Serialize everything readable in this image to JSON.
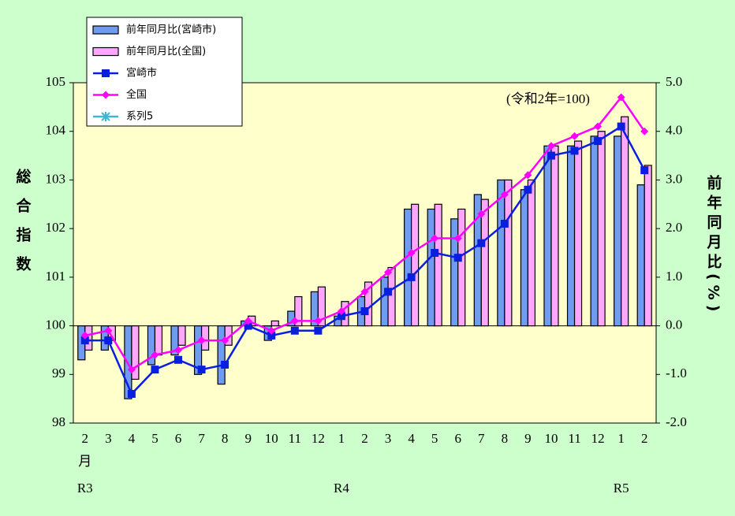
{
  "chart_data": {
    "type": "bar_line",
    "annotation": "(令和2年=100)",
    "y_axis_label": "総合指数",
    "y2_axis_label": "前年同月比(%)",
    "categories": [
      "2",
      "3",
      "4",
      "5",
      "6",
      "7",
      "8",
      "9",
      "10",
      "11",
      "12",
      "1",
      "2",
      "3",
      "4",
      "5",
      "6",
      "7",
      "8",
      "9",
      "10",
      "11",
      "12",
      "1",
      "2"
    ],
    "month_label": "月",
    "era_labels": [
      "R3",
      "R4",
      "R5"
    ],
    "ylim": [
      98,
      105
    ],
    "yticks": [
      98,
      99,
      100,
      101,
      102,
      103,
      104,
      105
    ],
    "y2lim": [
      -2,
      5
    ],
    "y2ticks": [
      {
        "value": -2,
        "label": "-2.0"
      },
      {
        "value": -1,
        "label": "-1.0"
      },
      {
        "value": 0,
        "label": "0.0"
      },
      {
        "value": 1,
        "label": "1.0"
      },
      {
        "value": 2,
        "label": "2.0"
      },
      {
        "value": 3,
        "label": "3.0"
      },
      {
        "value": 4,
        "label": "4.0"
      },
      {
        "value": 5,
        "label": "5.0"
      }
    ],
    "grid": false,
    "series": [
      {
        "name": "前年同月比(宮崎市)",
        "kind": "bar",
        "axis": "y2",
        "color": "#6f9cf0",
        "values": [
          -0.7,
          -0.5,
          -1.5,
          -0.8,
          -0.6,
          -1.0,
          -1.2,
          0.1,
          -0.3,
          0.3,
          0.7,
          0.2,
          0.6,
          1.0,
          2.4,
          2.4,
          2.2,
          2.7,
          3.0,
          2.8,
          3.7,
          3.7,
          3.9,
          3.9,
          2.9
        ]
      },
      {
        "name": "前年同月比(全国)",
        "kind": "bar",
        "axis": "y2",
        "color": "#ffa6ff",
        "values": [
          -0.5,
          -0.3,
          -1.1,
          -0.6,
          -0.4,
          -0.5,
          -0.4,
          0.2,
          0.1,
          0.6,
          0.8,
          0.5,
          0.9,
          1.2,
          2.5,
          2.5,
          2.4,
          2.6,
          3.0,
          3.0,
          3.7,
          3.8,
          4.0,
          4.3,
          3.3
        ]
      },
      {
        "name": "宮崎市",
        "kind": "line",
        "marker": "square",
        "color": "#0a1ee0",
        "values": [
          99.7,
          99.7,
          98.6,
          99.1,
          99.3,
          99.1,
          99.2,
          100.0,
          99.8,
          99.9,
          99.9,
          100.2,
          100.3,
          100.7,
          101.0,
          101.5,
          101.4,
          101.7,
          102.1,
          102.8,
          103.5,
          103.6,
          103.8,
          104.1,
          103.2
        ]
      },
      {
        "name": "全国",
        "kind": "line",
        "marker": "diamond",
        "color": "#ff00ff",
        "values": [
          99.8,
          99.9,
          99.1,
          99.4,
          99.5,
          99.7,
          99.7,
          100.1,
          99.9,
          100.1,
          100.1,
          100.3,
          100.7,
          101.1,
          101.5,
          101.8,
          101.8,
          102.3,
          102.7,
          103.1,
          103.7,
          103.9,
          104.1,
          104.7,
          104.0
        ]
      },
      {
        "name": "系列5",
        "kind": "line",
        "marker": "star",
        "color": "#3fb6d0",
        "values": [
          null,
          null,
          null,
          null,
          null,
          null,
          null,
          null,
          null,
          null,
          null,
          null,
          null,
          null,
          null,
          null,
          null,
          null,
          null,
          null,
          null,
          null,
          null,
          null,
          null
        ]
      }
    ]
  }
}
